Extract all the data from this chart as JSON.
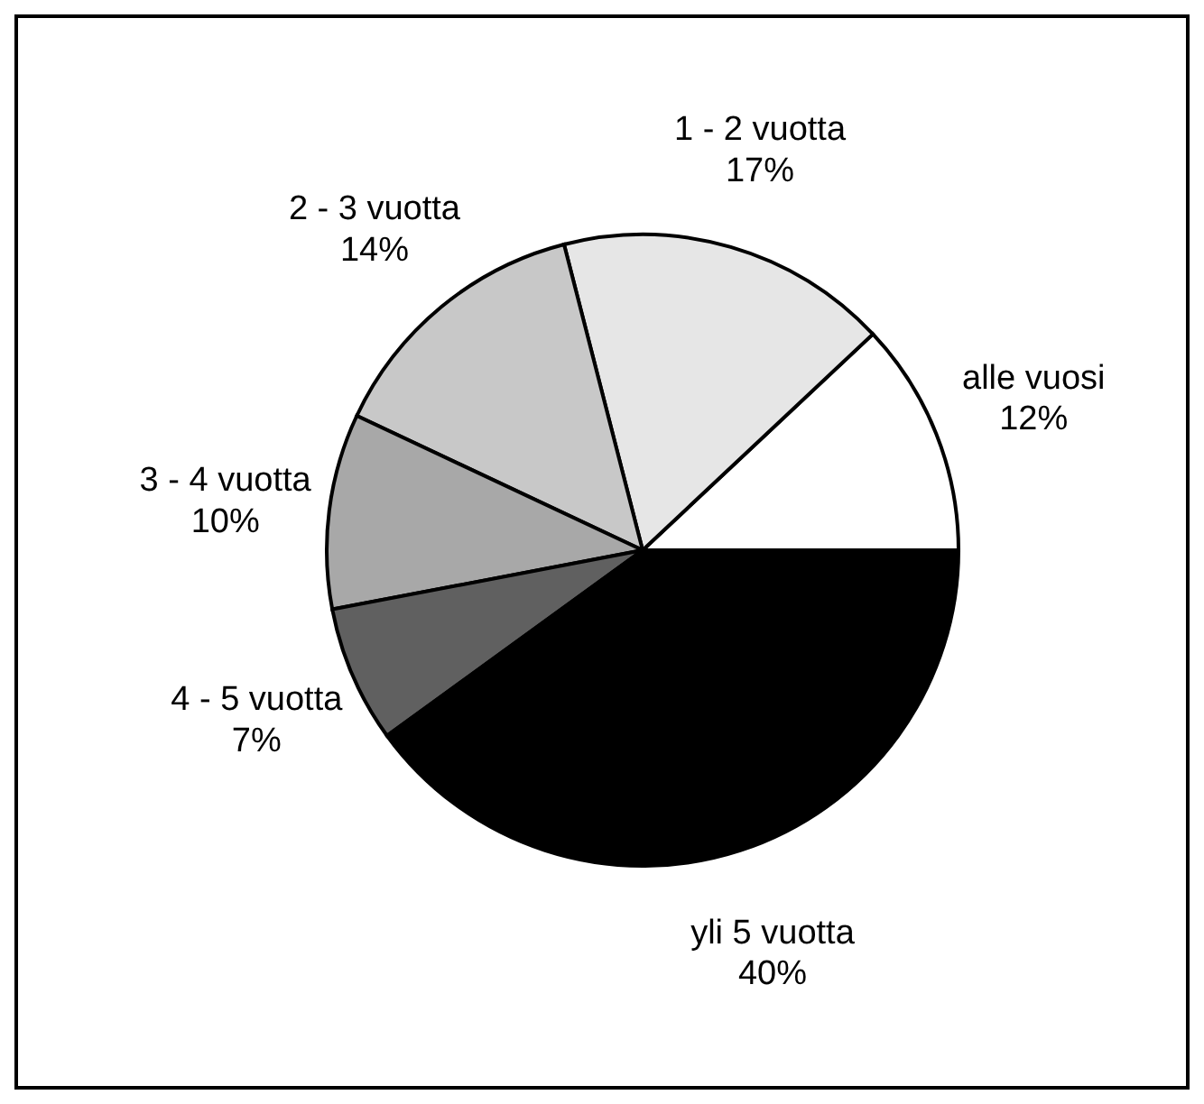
{
  "chart_data": {
    "type": "pie",
    "categories": [
      "alle vuosi",
      "1 - 2 vuotta",
      "2 - 3 vuotta",
      "3 - 4 vuotta",
      "4 - 5 vuotta",
      "yli 5 vuotta"
    ],
    "values": [
      12,
      17,
      14,
      10,
      7,
      40
    ],
    "value_labels": [
      "12%",
      "17%",
      "14%",
      "10%",
      "7%",
      "40%"
    ],
    "colors": [
      "#ffffff",
      "#e6e6e6",
      "#c8c8c8",
      "#a8a8a8",
      "#606060",
      "#000000"
    ],
    "legend": false
  }
}
